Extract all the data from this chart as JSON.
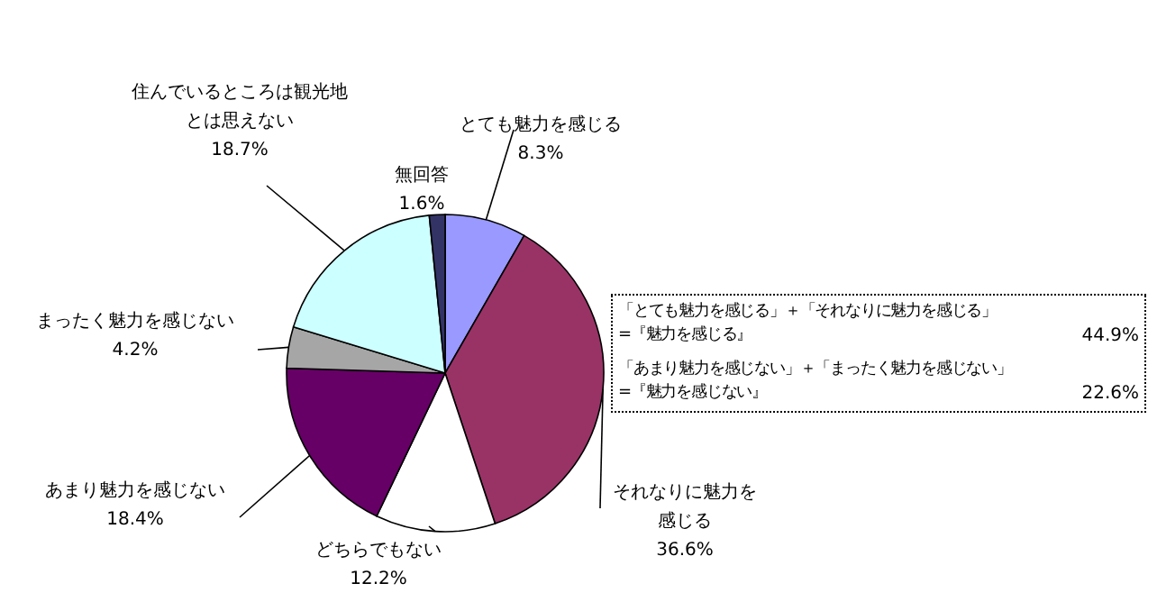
{
  "chart_data": {
    "type": "pie",
    "categories": [
      "とても魅力を感じる",
      "それなりに魅力を感じる",
      "どちらでもない",
      "あまり魅力を感じない",
      "まったく魅力を感じない",
      "住んでいるところは観光地とは思えない",
      "無回答"
    ],
    "values": [
      8.3,
      36.6,
      12.2,
      18.4,
      4.2,
      18.7,
      1.6
    ],
    "colors": [
      "#9999ff",
      "#993366",
      "#ffffff",
      "#660066",
      "#a6a6a6",
      "#ccffff",
      "#333366"
    ],
    "annotations": [
      "「とても魅力を感じる」＋「それなりに魅力を感じる」",
      "=『魅力を感じる』",
      "44.9%",
      "「あまり魅力を感じない」＋「まったく魅力を感じない」",
      "=『魅力を感じない』",
      "22.6%"
    ],
    "value_labels": [
      "8.3%",
      "36.6%",
      "12.2%",
      "18.4%",
      "4.2%",
      "18.7%",
      "1.6%"
    ]
  }
}
